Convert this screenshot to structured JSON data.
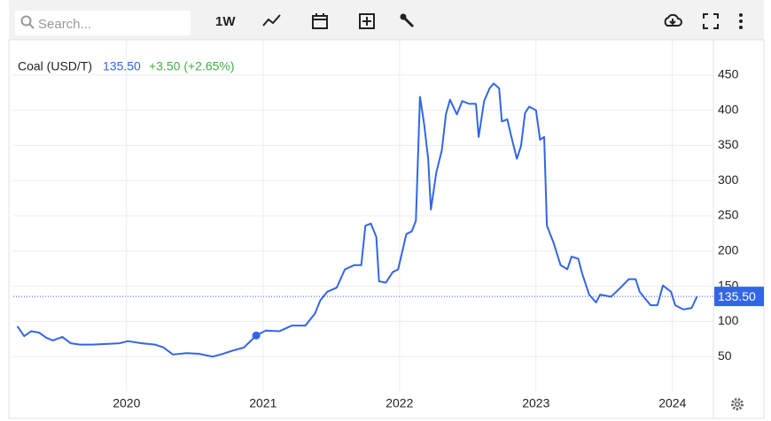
{
  "toolbar": {
    "search_placeholder": "Search...",
    "period": "1W"
  },
  "chart_data": {
    "type": "line",
    "price": "135.50",
    "change": "+3.50 (+2.65%)",
    "x": [
      2019.2,
      2019.25,
      2019.3,
      2019.36,
      2019.41,
      2019.46,
      2019.53,
      2019.59,
      2019.66,
      2019.75,
      2019.85,
      2019.95,
      2020.01,
      2020.11,
      2020.21,
      2020.27,
      2020.34,
      2020.44,
      2020.53,
      2020.63,
      2020.69,
      2020.77,
      2020.86,
      2020.95,
      2021.02,
      2021.12,
      2021.21,
      2021.31,
      2021.38,
      2021.42,
      2021.47,
      2021.54,
      2021.6,
      2021.67,
      2021.72,
      2021.75,
      2021.79,
      2021.83,
      2021.85,
      2021.9,
      2021.95,
      2021.99,
      2022.05,
      2022.09,
      2022.12,
      2022.15,
      2022.18,
      2022.21,
      2022.23,
      2022.27,
      2022.31,
      2022.34,
      2022.37,
      2022.42,
      2022.46,
      2022.51,
      2022.56,
      2022.58,
      2022.62,
      2022.66,
      2022.69,
      2022.73,
      2022.75,
      2022.79,
      2022.82,
      2022.86,
      2022.89,
      2022.92,
      2022.95,
      2023.0,
      2023.03,
      2023.06,
      2023.08,
      2023.13,
      2023.18,
      2023.23,
      2023.26,
      2023.31,
      2023.34,
      2023.39,
      2023.44,
      2023.47,
      2023.55,
      2023.62,
      2023.68,
      2023.73,
      2023.76,
      2023.84,
      2023.89,
      2023.93,
      2023.99,
      2024.02,
      2024.08,
      2024.14,
      2024.18
    ],
    "series": [
      {
        "name": "Coal (USD/T)",
        "color": "#3366e6",
        "values": [
          93,
          79,
          86,
          84,
          77,
          73,
          78,
          69,
          67,
          67,
          68,
          69,
          72,
          69,
          67,
          63,
          53,
          55,
          54,
          50,
          53,
          58,
          63,
          80,
          87,
          86,
          94,
          94,
          111,
          130,
          142,
          148,
          174,
          180,
          180,
          236,
          239,
          220,
          157,
          155,
          170,
          174,
          224,
          228,
          243,
          419,
          381,
          331,
          259,
          312,
          343,
          394,
          415,
          394,
          413,
          409,
          409,
          362,
          413,
          431,
          438,
          431,
          384,
          387,
          362,
          331,
          349,
          396,
          405,
          400,
          358,
          362,
          236,
          211,
          180,
          174,
          192,
          189,
          167,
          138,
          127,
          138,
          135,
          148,
          160,
          160,
          142,
          123,
          123,
          151,
          142,
          123,
          117,
          119,
          135.5
        ]
      }
    ],
    "xlim": [
      2019.17,
      2024.3
    ],
    "xticks": [
      2020,
      2021,
      2022,
      2023,
      2024
    ],
    "ylim": [
      0,
      500
    ],
    "yticks": [
      50,
      100,
      150,
      200,
      250,
      300,
      350,
      400,
      450
    ],
    "grid": true
  }
}
